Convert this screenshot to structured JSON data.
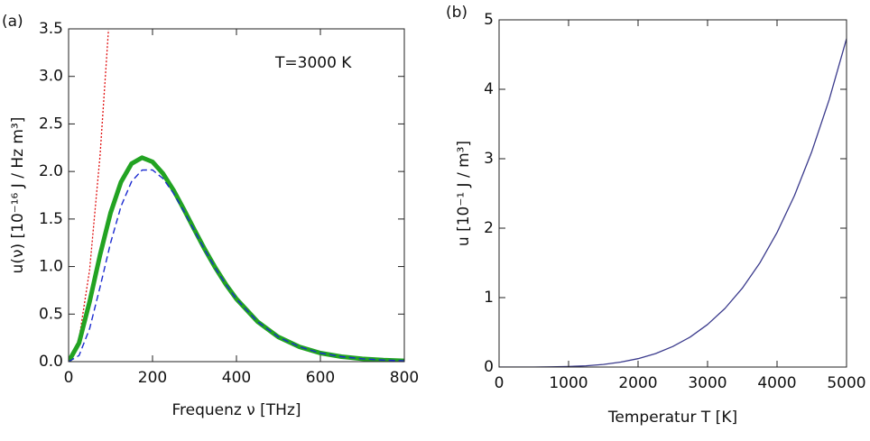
{
  "chart_data": [
    {
      "type": "line",
      "panel": "(a)",
      "annotation": "T=3000 K",
      "xlabel": "Frequenz ν [THz]",
      "ylabel": "u(ν) [10⁻¹⁶ J / Hz m³]",
      "xlim": [
        0,
        800
      ],
      "ylim": [
        0,
        3.5
      ],
      "xticks": [
        0,
        200,
        400,
        600,
        800
      ],
      "yticks": [
        {
          "value": 0,
          "label": "0.0"
        },
        {
          "value": 0.5,
          "label": "0.5"
        },
        {
          "value": 1,
          "label": "1.0"
        },
        {
          "value": 1.5,
          "label": "1.5"
        },
        {
          "value": 2,
          "label": "2.0"
        },
        {
          "value": 2.5,
          "label": "2.5"
        },
        {
          "value": 3,
          "label": "3.0"
        },
        {
          "value": 3.5,
          "label": "3.5"
        }
      ],
      "x": [
        0,
        25,
        50,
        75,
        100,
        125,
        150,
        175,
        200,
        225,
        250,
        275,
        300,
        325,
        350,
        375,
        400,
        450,
        500,
        550,
        600,
        650,
        700,
        750,
        800
      ],
      "series": [
        {
          "color": "#e01010",
          "style": "dotted",
          "x": [
            0,
            25,
            50,
            75,
            95
          ],
          "values": [
            0,
            0.2415,
            0.966,
            2.173,
            3.49
          ]
        },
        {
          "color": "#22a322",
          "style": "thick",
          "values": [
            0,
            0.1964,
            0.6305,
            1.1242,
            1.564,
            1.89,
            2.083,
            2.146,
            2.102,
            1.979,
            1.803,
            1.599,
            1.386,
            1.178,
            0.9845,
            0.8108,
            0.659,
            0.4213,
            0.2594,
            0.1551,
            0.0905,
            0.0517,
            0.029,
            0.016,
            0.00874
          ]
        },
        {
          "color": "#1a2ad0",
          "style": "dashed",
          "values": [
            0,
            0.0647,
            0.3472,
            0.7855,
            1.248,
            1.634,
            1.894,
            2.015,
            2.017,
            1.925,
            1.77,
            1.579,
            1.375,
            1.172,
            0.981,
            0.8087,
            0.658,
            0.421,
            0.2593,
            0.1551,
            0.0905,
            0.0517,
            0.029,
            0.016,
            0.0087
          ]
        }
      ]
    },
    {
      "type": "line",
      "panel": "(b)",
      "xlabel": "Temperatur T [K]",
      "ylabel": "u [10⁻¹ J / m³]",
      "xlim": [
        0,
        5000
      ],
      "ylim": [
        0,
        5
      ],
      "xticks": [
        0,
        1000,
        2000,
        3000,
        4000,
        5000
      ],
      "yticks": [
        0,
        1,
        2,
        3,
        4,
        5
      ],
      "x": [
        0,
        250,
        500,
        750,
        1000,
        1250,
        1500,
        1750,
        2000,
        2250,
        2500,
        2750,
        3000,
        3250,
        3500,
        3750,
        4000,
        4250,
        4500,
        4750,
        5000
      ],
      "series": [
        {
          "color": "#3a3a8c",
          "style": "solid",
          "values": [
            0,
            2.96e-05,
            0.000473,
            0.00239,
            0.00757,
            0.01847,
            0.0383,
            0.07096,
            0.1211,
            0.1939,
            0.2955,
            0.4327,
            0.6128,
            0.8441,
            1.1354,
            1.4962,
            1.9372,
            2.4684,
            3.1025,
            3.8517,
            4.729
          ]
        }
      ]
    }
  ]
}
